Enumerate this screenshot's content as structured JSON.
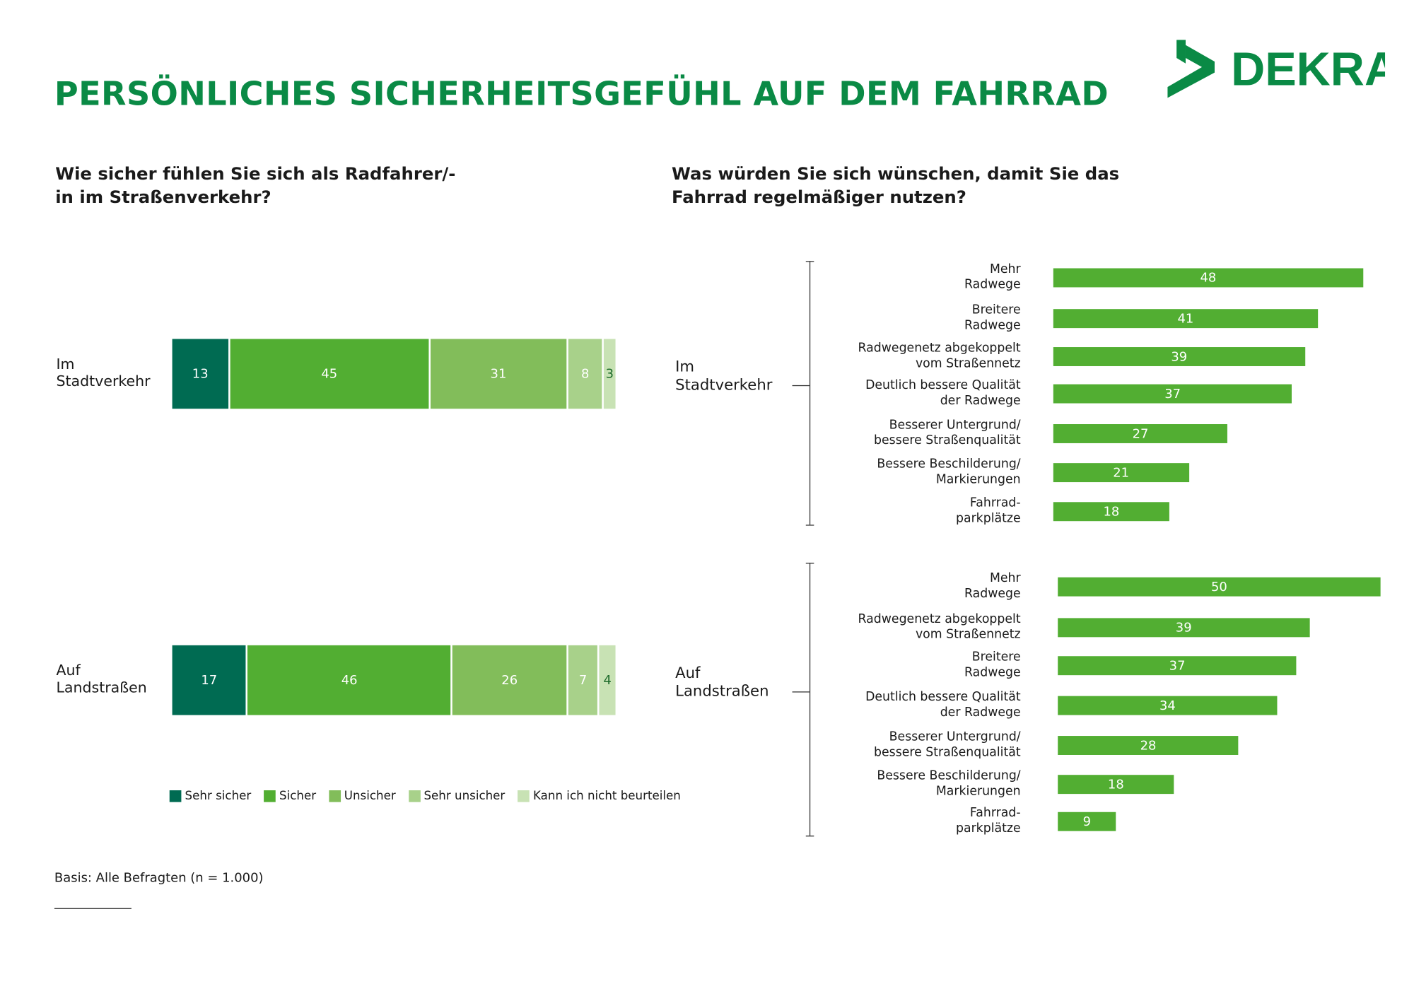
{
  "title": "PERSÖNLICHES SICHERHEITSGEFÜHL AUF DEM FAHRRAD",
  "logo": {
    "text": "DEKRA",
    "color": "#0A8A45"
  },
  "footnote": "Basis: Alle Befragten (n = 1.000)",
  "chart_data": [
    {
      "type": "bar",
      "orientation": "horizontal-stacked",
      "title": "Wie sicher fühlen Sie sich als Radfahrer/-in im Straßenverkehr?",
      "categories": [
        "Im Stadtverkehr",
        "Auf Landstraßen"
      ],
      "series": [
        {
          "name": "Sehr sicher",
          "color": "#006B52",
          "values": [
            13,
            17
          ]
        },
        {
          "name": "Sicher",
          "color": "#52AE32",
          "values": [
            45,
            46
          ]
        },
        {
          "name": "Unsicher",
          "color": "#82BD5A",
          "values": [
            31,
            26
          ]
        },
        {
          "name": "Sehr unsicher",
          "color": "#A8D18A",
          "values": [
            8,
            7
          ]
        },
        {
          "name": "Kann ich nicht beurteilen",
          "color": "#C8E2B4",
          "values": [
            3,
            4
          ]
        }
      ],
      "legend": "bottom"
    },
    {
      "type": "bar",
      "orientation": "horizontal",
      "title": "Was würden Sie sich wünschen, damit Sie das Fahrrad regelmäßiger nutzen?",
      "color": "#52AE32",
      "groups": [
        {
          "name": "Im Stadtverkehr",
          "items": [
            {
              "label": "Mehr Radwege",
              "value": 48
            },
            {
              "label": "Breitere Radwege",
              "value": 41
            },
            {
              "label": "Radwegenetz abgekoppelt vom Straßennetz",
              "value": 39
            },
            {
              "label": "Deutlich bessere Qualität der Radwege",
              "value": 37
            },
            {
              "label": "Besserer Untergrund/ bessere Straßenqualität",
              "value": 27
            },
            {
              "label": "Bessere Beschilderung/ Markierungen",
              "value": 21
            },
            {
              "label": "Fahrrad- parkplätze",
              "value": 18
            }
          ]
        },
        {
          "name": "Auf Landstraßen",
          "items": [
            {
              "label": "Mehr Radwege",
              "value": 50
            },
            {
              "label": "Radwegenetz abgekoppelt vom Straßennetz",
              "value": 39
            },
            {
              "label": "Breitere Radwege",
              "value": 37
            },
            {
              "label": "Deutlich bessere Qualität der Radwege",
              "value": 34
            },
            {
              "label": "Besserer Untergrund/ bessere Straßenqualität",
              "value": 28
            },
            {
              "label": "Bessere Beschilderung/ Markierungen",
              "value": 18
            },
            {
              "label": "Fahrrad- parkplätze",
              "value": 9
            }
          ]
        }
      ]
    }
  ]
}
